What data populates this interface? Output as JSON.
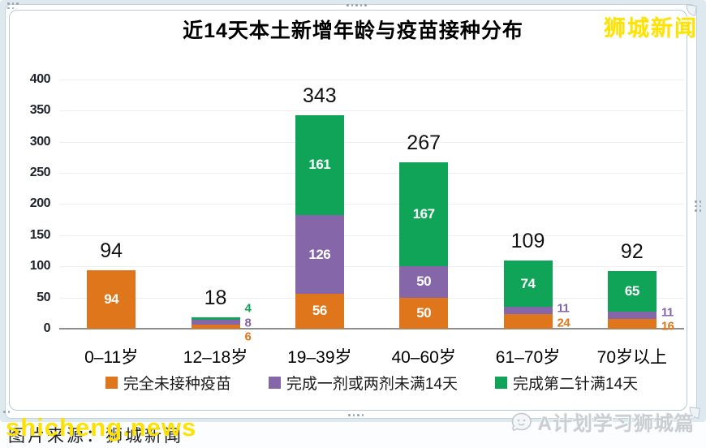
{
  "frame": {
    "brand_top_right": "狮城新闻",
    "watermark_yellow": "shicheng.news",
    "watermark_under": "图片来源：狮城新闻",
    "bottom_right_label": "A计划学习狮城篇"
  },
  "chart_data": {
    "type": "bar",
    "stacked": true,
    "title": "近14天本土新增年龄与疫苗接种分布",
    "categories": [
      "0–11岁",
      "12–18岁",
      "19–39岁",
      "40–60岁",
      "61–70岁",
      "70岁以上"
    ],
    "totals": [
      94,
      18,
      343,
      267,
      109,
      92
    ],
    "series": [
      {
        "name": "完全未接种疫苗",
        "color": "#E0761B",
        "values": [
          94,
          6,
          56,
          50,
          24,
          16
        ]
      },
      {
        "name": "完成一剂或两剂未满14天",
        "color": "#8566A8",
        "values": [
          0,
          8,
          126,
          50,
          11,
          11
        ]
      },
      {
        "name": "完成第二针满14天",
        "color": "#0FA457",
        "values": [
          0,
          4,
          161,
          167,
          74,
          65
        ]
      }
    ],
    "ylabel": "",
    "xlabel": "",
    "ylim": [
      0,
      400
    ],
    "ytick_step": 50,
    "grid": true,
    "legend_position": "bottom"
  },
  "colors": {
    "grid": "#efefef",
    "axis": "#8e8e8e",
    "tick_text": "#1e222a"
  }
}
